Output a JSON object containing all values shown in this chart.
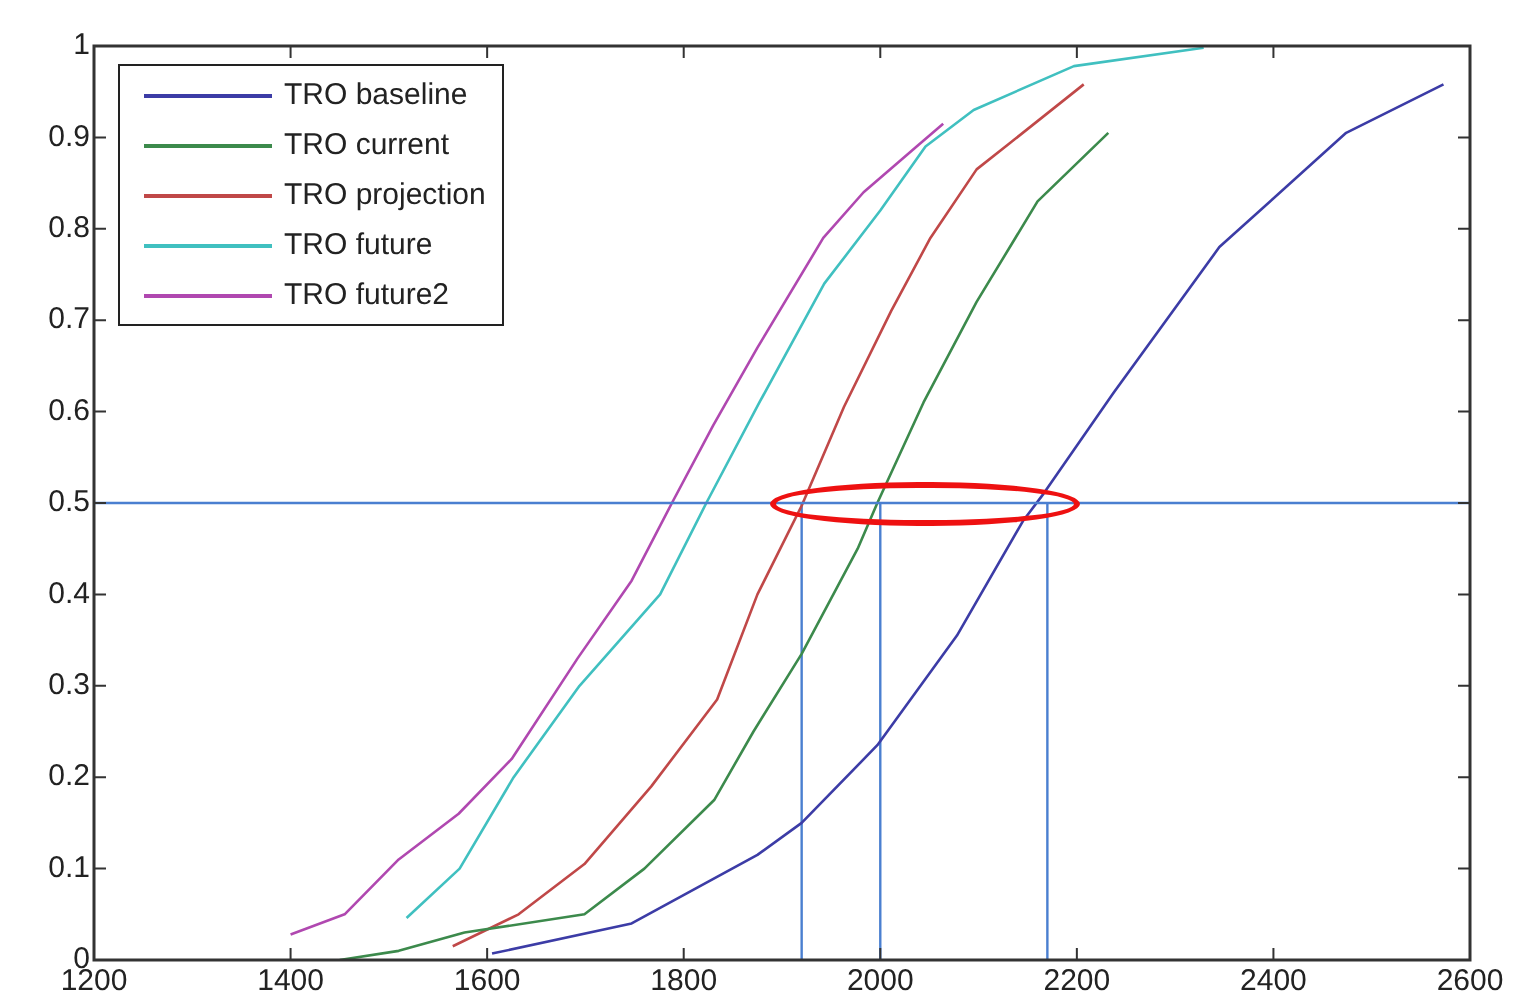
{
  "chart_data": {
    "type": "line",
    "legend": "top left",
    "grid": false,
    "marker": "none",
    "line_style": "solid",
    "xlim": [
      1200,
      2600
    ],
    "xticks": [
      1200,
      1400,
      1600,
      1800,
      2000,
      2200,
      2400,
      2600
    ],
    "ylim": [
      0,
      1
    ],
    "yticks": [
      0,
      0.1,
      0.2,
      0.3,
      0.4,
      0.5,
      0.6,
      0.7,
      0.8,
      0.9,
      1
    ],
    "ref_lines": [
      {
        "axis": "y",
        "value": 0.5,
        "color": "#4a7fd0"
      }
    ],
    "series": [
      {
        "name": "TRO baseline",
        "color": "#3c3ca6",
        "x": [
          1605,
          1747,
          1875,
          1920,
          1997,
          2078,
          2145,
          2166,
          2237,
          2345,
          2474,
          2573
        ],
        "values": [
          0.007,
          0.04,
          0.115,
          0.15,
          0.235,
          0.355,
          0.48,
          0.51,
          0.62,
          0.78,
          0.905,
          0.958
        ]
      },
      {
        "name": "TRO current",
        "color": "#3c8a4c",
        "x": [
          1450,
          1510,
          1577,
          1699,
          1760,
          1831,
          1871,
          1920,
          1977,
          1997,
          2044,
          2098,
          2160,
          2232
        ],
        "values": [
          0,
          0.01,
          0.03,
          0.05,
          0.1,
          0.175,
          0.25,
          0.335,
          0.45,
          0.5,
          0.61,
          0.72,
          0.83,
          0.905
        ]
      },
      {
        "name": "TRO projection",
        "color": "#c04848",
        "x": [
          1565,
          1632,
          1699,
          1767,
          1834,
          1875,
          1920,
          1963,
          2011,
          2051,
          2098,
          2131,
          2207
        ],
        "values": [
          0.015,
          0.05,
          0.105,
          0.19,
          0.285,
          0.4,
          0.497,
          0.605,
          0.71,
          0.79,
          0.865,
          0.893,
          0.958
        ]
      },
      {
        "name": "TRO future",
        "color": "#40c0c0",
        "x": [
          1518,
          1572,
          1627,
          1694,
          1776,
          1823,
          1877,
          1943,
          2000,
          2046,
          2095,
          2197,
          2329
        ],
        "values": [
          0.046,
          0.1,
          0.2,
          0.3,
          0.4,
          0.5,
          0.61,
          0.74,
          0.82,
          0.89,
          0.93,
          0.978,
          0.998
        ]
      },
      {
        "name": "TRO future2",
        "color": "#b048b0",
        "x": [
          1400,
          1455,
          1510,
          1571,
          1625,
          1692,
          1747,
          1788,
          1830,
          1875,
          1942,
          1983,
          2037,
          2064
        ],
        "values": [
          0.028,
          0.05,
          0.11,
          0.16,
          0.22,
          0.33,
          0.415,
          0.5,
          0.585,
          0.67,
          0.79,
          0.84,
          0.89,
          0.915
        ]
      },
      {
        "type": "line",
        "color": "#4a7fd0",
        "x": [
          1920,
          1920
        ],
        "values": [
          0,
          0.5
        ]
      },
      {
        "type": "line",
        "color": "#4a7fd0",
        "x": [
          2000,
          2000
        ],
        "values": [
          0,
          0.5
        ]
      },
      {
        "type": "line",
        "color": "#4a7fd0",
        "x": [
          2170,
          2170
        ],
        "values": [
          0,
          0.5
        ]
      }
    ]
  }
}
